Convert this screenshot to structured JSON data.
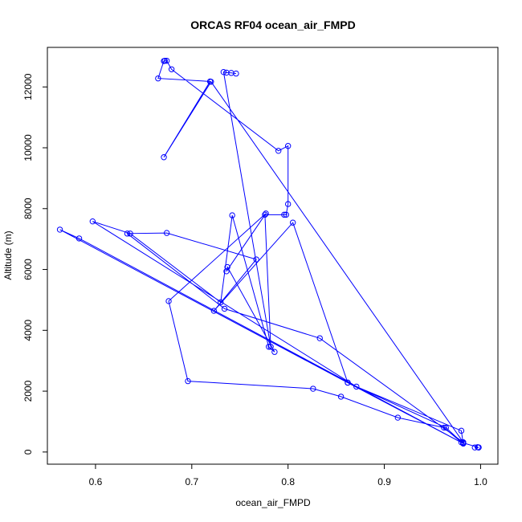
{
  "chart_data": {
    "type": "line",
    "title": "ORCAS RF04 ocean_air_FMPD",
    "xlabel": "ocean_air_FMPD",
    "ylabel": "Altitude (m)",
    "xlim": [
      0.55,
      1.018
    ],
    "ylim": [
      -400,
      13300
    ],
    "xticks": [
      0.6,
      0.7,
      0.8,
      0.9,
      1.0
    ],
    "xtick_labels": [
      "0.6",
      "0.7",
      "0.8",
      "0.9",
      "1.0"
    ],
    "yticks": [
      0,
      2000,
      4000,
      6000,
      8000,
      10000,
      12000
    ],
    "ytick_labels": [
      "0",
      "2000",
      "4000",
      "6000",
      "8000",
      "10000",
      "12000"
    ],
    "markers": "open-circle",
    "grid": false,
    "legend": "none",
    "color": "#0000ff",
    "series": [
      {
        "x": [
          0.994,
          0.998,
          0.997,
          0.998,
          0.982,
          0.98,
          0.962,
          0.914,
          0.855,
          0.826,
          0.696,
          0.676,
          0.777,
          0.736,
          0.737,
          0.786,
          0.78,
          0.742,
          0.73,
          0.636,
          0.597,
          0.871,
          0.98,
          0.982,
          0.862,
          0.563,
          0.583,
          0.982,
          0.964,
          0.862,
          0.805,
          0.723,
          0.767,
          0.674,
          0.633,
          0.734,
          0.833,
          0.982,
          0.72,
          0.671,
          0.719,
          0.665,
          0.671,
          0.672,
          0.674,
          0.679,
          0.79,
          0.8,
          0.8,
          0.798,
          0.796,
          0.776,
          0.782,
          0.733,
          0.736,
          0.741,
          0.746
        ],
        "y": [
          150,
          150,
          160,
          150,
          300,
          320,
          800,
          1130,
          1820,
          2080,
          2330,
          4960,
          7840,
          5940,
          6080,
          3290,
          3460,
          7780,
          4920,
          7180,
          7580,
          2150,
          700,
          280,
          2280,
          7310,
          7020,
          280,
          800,
          2280,
          7540,
          4640,
          6330,
          7200,
          7180,
          4710,
          3740,
          320,
          12170,
          9690,
          12180,
          12280,
          12850,
          12860,
          12860,
          12580,
          9900,
          10060,
          8150,
          7800,
          7800,
          7800,
          3460,
          12490,
          12470,
          12460,
          12440
        ]
      }
    ]
  }
}
